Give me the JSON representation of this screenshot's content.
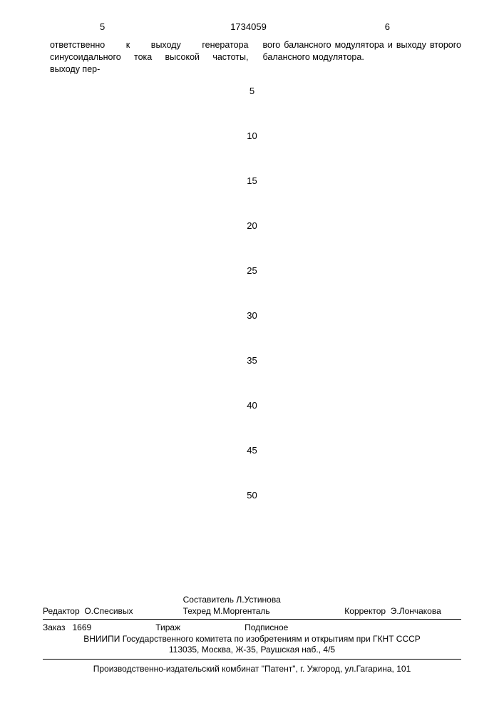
{
  "header": {
    "col_left": "5",
    "doc_number": "1734059",
    "col_right": "6"
  },
  "text": {
    "left_col": "ответственно к выходу генератора синусоидального тока высокой частоты, выходу пер-",
    "right_col": "вого балансного модулятора и выходу второго балансного модулятора."
  },
  "line_numbers": [
    "5",
    "10",
    "15",
    "20",
    "25",
    "30",
    "35",
    "40",
    "45",
    "50"
  ],
  "footer": {
    "compiler": "Составитель  Л.Устинова",
    "editor_label": "Редактор",
    "editor": "О.Спесивых",
    "techred_label": "Техред",
    "techred": "М.Моргенталь",
    "corrector_label": "Корректор",
    "corrector": "Э.Лончакова",
    "order_label": "Заказ",
    "order": "1669",
    "tirazh": "Тираж",
    "subscription": "Подписное",
    "institution_line1": "ВНИИПИ Государственного комитета по изобретениям и открытиям при ГКНТ СССР",
    "institution_line2": "113035, Москва, Ж-35, Раушская наб., 4/5",
    "printer": "Производственно-издательский комбинат \"Патент\", г. Ужгород, ул.Гагарина, 101"
  }
}
